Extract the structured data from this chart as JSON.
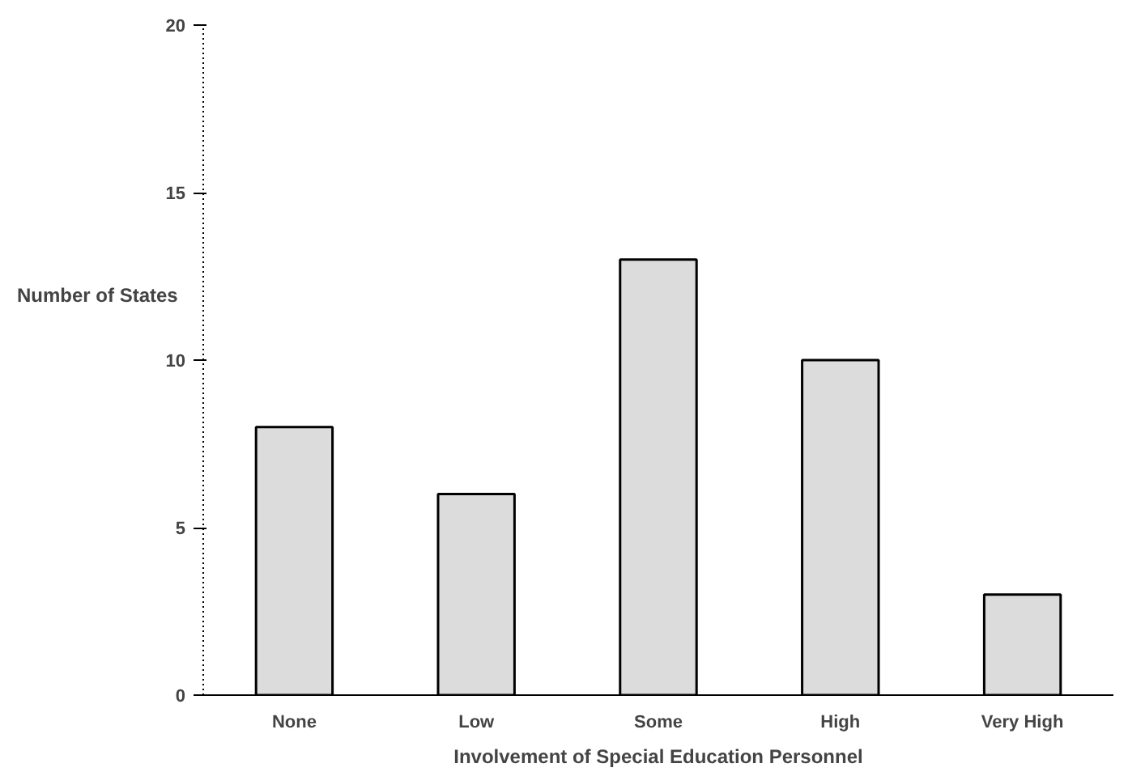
{
  "chart_data": {
    "type": "bar",
    "xlabel": "Involvement of Special Education Personnel",
    "ylabel": "Number of States",
    "categories": [
      "None",
      "Low",
      "Some",
      "High",
      "Very High"
    ],
    "values": [
      8,
      6,
      13,
      10,
      3
    ],
    "color": "#dcdcdc",
    "ylim": [
      0,
      20
    ],
    "yticks": [
      0,
      5,
      10,
      15,
      20
    ],
    "grid": false
  }
}
